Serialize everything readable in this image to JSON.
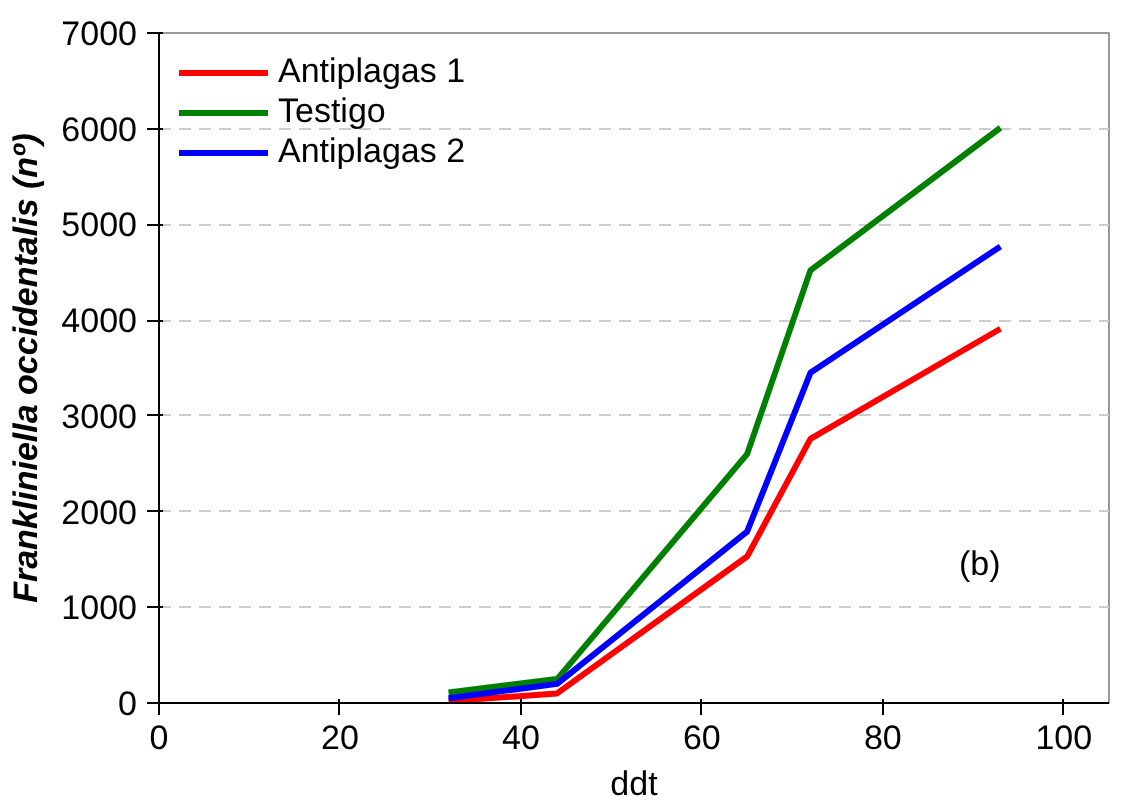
{
  "chart_data": {
    "type": "line",
    "xlabel": "ddt",
    "ylabel": "Frankliniella occidentalis (nº)",
    "x": [
      32,
      44,
      65,
      72,
      93
    ],
    "series": [
      {
        "name": "Antiplagas 1",
        "color": "#ff0000",
        "values": [
          20,
          100,
          1530,
          2760,
          3910
        ]
      },
      {
        "name": "Testigo",
        "color": "#008000",
        "values": [
          110,
          250,
          2600,
          4520,
          6010
        ]
      },
      {
        "name": "Antiplagas 2",
        "color": "#0000ff",
        "values": [
          50,
          200,
          1790,
          3450,
          4770
        ]
      }
    ],
    "xlim": [
      0,
      105
    ],
    "xticks": [
      0,
      20,
      40,
      60,
      80,
      100
    ],
    "ylim": [
      0,
      7000
    ],
    "yticks": [
      0,
      1000,
      2000,
      3000,
      4000,
      5000,
      6000,
      7000
    ],
    "grid": "y",
    "legend": "top left",
    "marker": "none",
    "line_style": "solid",
    "annotations": [
      "(b)"
    ]
  }
}
